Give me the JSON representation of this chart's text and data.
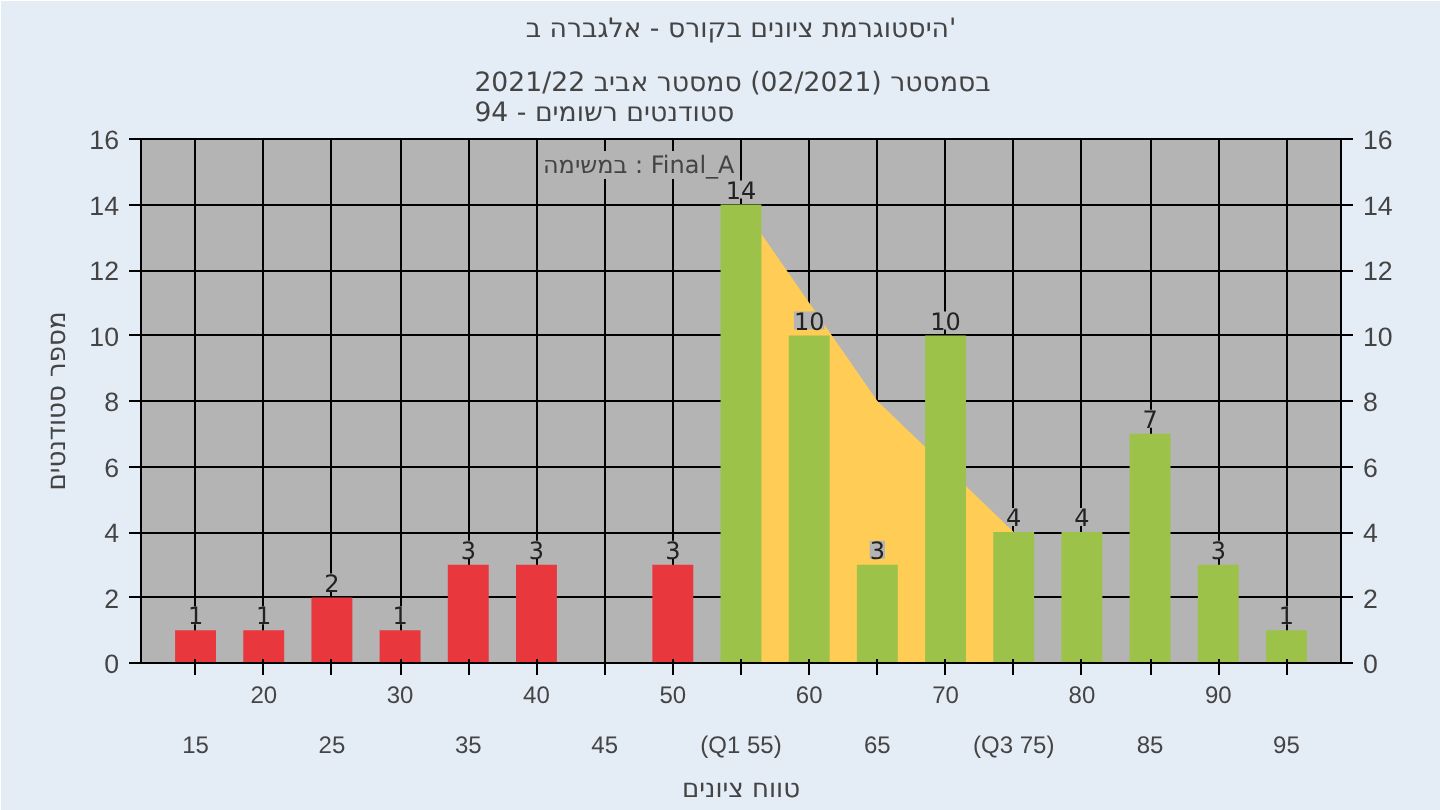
{
  "chart_data": {
    "type": "bar",
    "title": "היסטוגרמת ציונים בקורס - אלגברה ב'",
    "subtitle": "בסמסטר  (02/2021)  סמסטר אביב 2021/22\nסטודנטים רשומים - 94",
    "xlabel": "טווח ציונים",
    "ylabel": "מספר סטודנטים",
    "annotations": [
      "במשימה : Final_A"
    ],
    "categories": [
      "15",
      "20",
      "25",
      "30",
      "35",
      "40",
      "45",
      "50",
      "(Q1 55)",
      "60",
      "65",
      "70",
      "(Q3 75)",
      "80",
      "85",
      "90",
      "95"
    ],
    "series": [
      {
        "type": "area",
        "color": "#ffcc55",
        "values": [
          null,
          null,
          null,
          null,
          null,
          null,
          null,
          null,
          14,
          null,
          8,
          null,
          4,
          null,
          null,
          null,
          null
        ]
      },
      {
        "value_labels": [
          "1",
          "1",
          "2",
          "1",
          "3",
          "3",
          null,
          "3",
          "14",
          "10",
          "3",
          "10",
          "4",
          "4",
          "7",
          "3",
          "1"
        ],
        "colors": [
          "#e8383d",
          "#e8383d",
          "#e8383d",
          "#e8383d",
          "#e8383d",
          "#e8383d",
          "#e8383d",
          "#e8383d",
          "#9cc24a",
          "#9cc24a",
          "#9cc24a",
          "#9cc24a",
          "#9cc24a",
          "#9cc24a",
          "#9cc24a",
          "#9cc24a",
          "#9cc24a"
        ],
        "values": [
          1,
          1,
          2,
          1,
          3,
          3,
          0,
          3,
          14,
          10,
          3,
          10,
          4,
          4,
          7,
          3,
          1
        ]
      }
    ],
    "ylim": [
      0,
      16
    ],
    "yticks": [
      0,
      2,
      4,
      6,
      8,
      10,
      12,
      14,
      16
    ],
    "y2lim": [
      0,
      16
    ],
    "y2ticks": [
      0,
      2,
      4,
      6,
      8,
      10,
      12,
      14,
      16
    ],
    "grid": true
  }
}
